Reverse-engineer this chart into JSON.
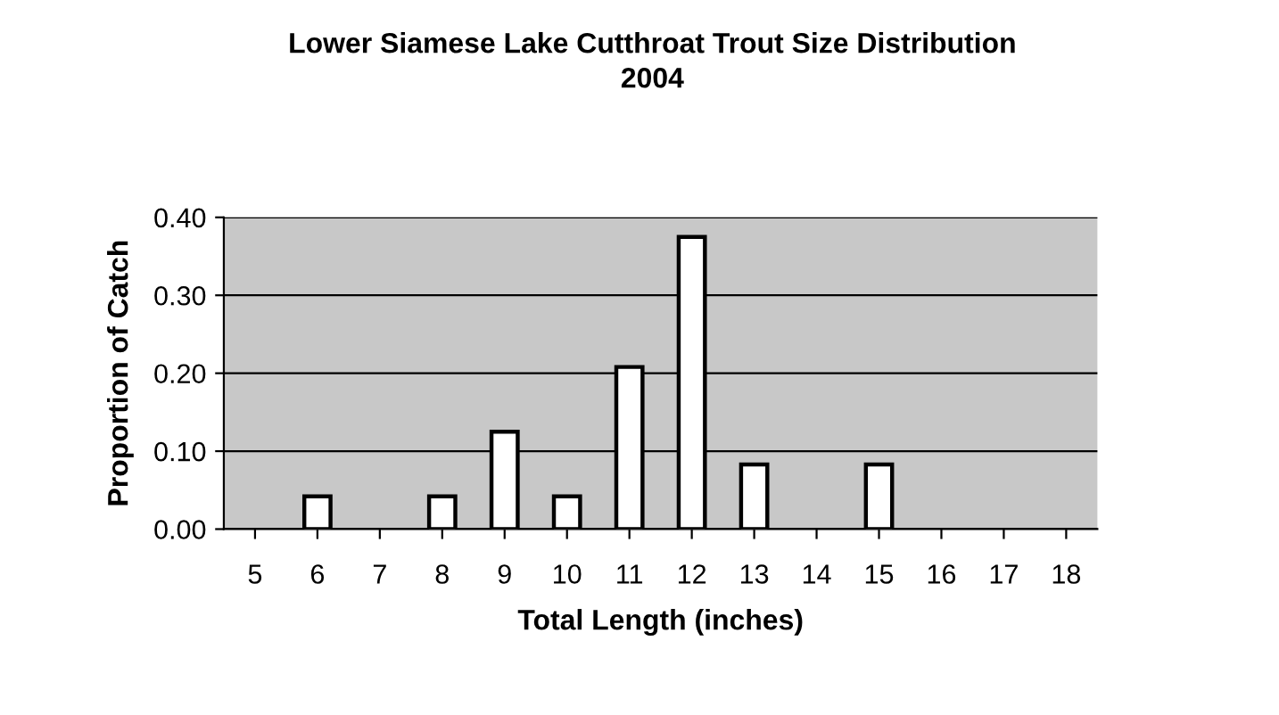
{
  "chart_data": {
    "type": "bar",
    "title": "Lower Siamese Lake Cutthroat Trout Size Distribution\n2004",
    "xlabel": "Total Length (inches)",
    "ylabel": "Proportion of Catch",
    "categories": [
      "5",
      "6",
      "7",
      "8",
      "9",
      "10",
      "11",
      "12",
      "13",
      "14",
      "15",
      "16",
      "17",
      "18"
    ],
    "values": [
      0,
      0.042,
      0,
      0.042,
      0.125,
      0.042,
      0.208,
      0.375,
      0.083,
      0,
      0.083,
      0,
      0,
      0
    ],
    "color": "#ffffff",
    "ylim": [
      0,
      0.4
    ],
    "yticks": [
      {
        "value": 0,
        "label": "0.00"
      },
      {
        "value": 0.1,
        "label": "0.10"
      },
      {
        "value": 0.2,
        "label": "0.20"
      },
      {
        "value": 0.3,
        "label": "0.30"
      },
      {
        "value": 0.4,
        "label": "0.40"
      }
    ],
    "grid": "y",
    "legend": false
  }
}
